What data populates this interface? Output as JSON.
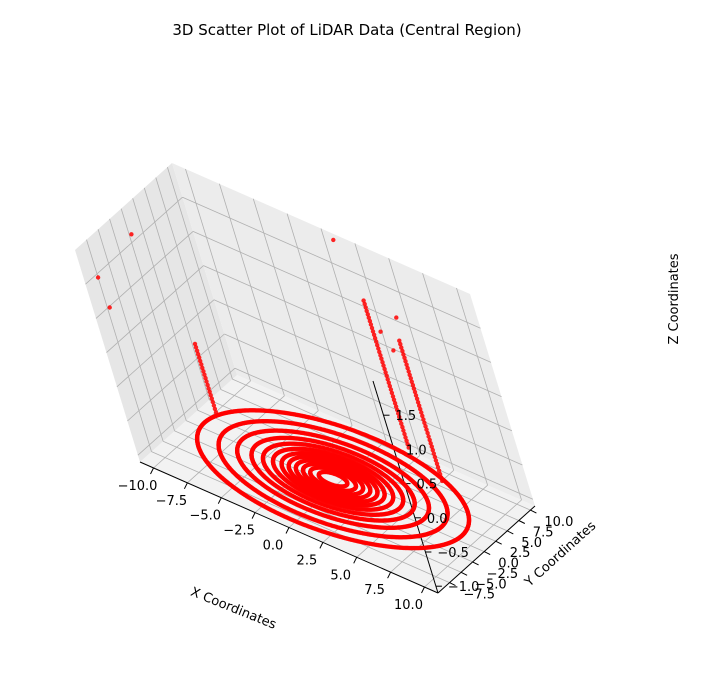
{
  "chart_data": {
    "type": "scatter",
    "projection": "3d",
    "title": "3D Scatter Plot of LiDAR Data (Central Region)",
    "xlabel": "X Coordinates",
    "ylabel": "Y Coordinates",
    "zlabel": "Z Coordinates",
    "xlim": [
      -11,
      11
    ],
    "ylim": [
      -10,
      11
    ],
    "zlim": [
      -1.1,
      2.0
    ],
    "grid": true,
    "marker_color": "#ff0000",
    "x_ticks": [
      -10.0,
      -7.5,
      -5.0,
      -2.5,
      0.0,
      2.5,
      5.0,
      7.5,
      10.0
    ],
    "x_tick_labels": [
      "−10.0",
      "−7.5",
      "−5.0",
      "−2.5",
      "0.0",
      "2.5",
      "5.0",
      "7.5",
      "10.0"
    ],
    "y_ticks": [
      -7.5,
      -5.0,
      -2.5,
      0.0,
      2.5,
      5.0,
      7.5,
      10.0
    ],
    "y_tick_labels": [
      "−7.5",
      "−5.0",
      "−2.5",
      "0.0",
      "2.5",
      "5.0",
      "7.5",
      "10.0"
    ],
    "z_ticks": [
      -1.0,
      -0.5,
      0.0,
      0.5,
      1.0,
      1.5
    ],
    "z_tick_labels": [
      "−1.0",
      "−0.5",
      "0.0",
      "0.5",
      "1.0",
      "1.5"
    ],
    "series": [
      {
        "ground_rings": [
          {
            "radius": 1.0,
            "z": -1.0
          },
          {
            "radius": 1.6,
            "z": -1.0
          },
          {
            "radius": 2.1,
            "z": -1.0
          },
          {
            "radius": 2.6,
            "z": -1.0
          },
          {
            "radius": 3.1,
            "z": -1.0
          },
          {
            "radius": 3.6,
            "z": -1.0
          },
          {
            "radius": 4.2,
            "z": -1.0
          },
          {
            "radius": 4.9,
            "z": -1.0
          },
          {
            "radius": 5.7,
            "z": -1.0
          },
          {
            "radius": 6.7,
            "z": -1.0
          },
          {
            "radius": 8.0,
            "z": -1.0
          },
          {
            "radius": 9.5,
            "z": -1.0
          }
        ],
        "vertical_poles": [
          {
            "x": 2.0,
            "y": 10.5,
            "z_from": -1.0,
            "z_to": 1.15
          },
          {
            "x": 5.5,
            "y": 7.5,
            "z_from": -1.0,
            "z_to": 1.05
          },
          {
            "x": -9.5,
            "y": 2.5,
            "z_from": -1.0,
            "z_to": 0.0
          }
        ],
        "isolated_points": [
          {
            "x": -10.5,
            "y": -8.5,
            "z": 1.55
          },
          {
            "x": -10.2,
            "y": -8.7,
            "z": 1.15
          },
          {
            "x": -9.8,
            "y": -2.0,
            "z": 1.85
          },
          {
            "x": 1.0,
            "y": 10.5,
            "z": 1.95
          },
          {
            "x": 6.0,
            "y": 7.2,
            "z": 1.45
          },
          {
            "x": 4.8,
            "y": 6.2,
            "z": 1.2
          },
          {
            "x": 5.5,
            "y": 6.0,
            "z": 1.0
          }
        ]
      }
    ]
  }
}
